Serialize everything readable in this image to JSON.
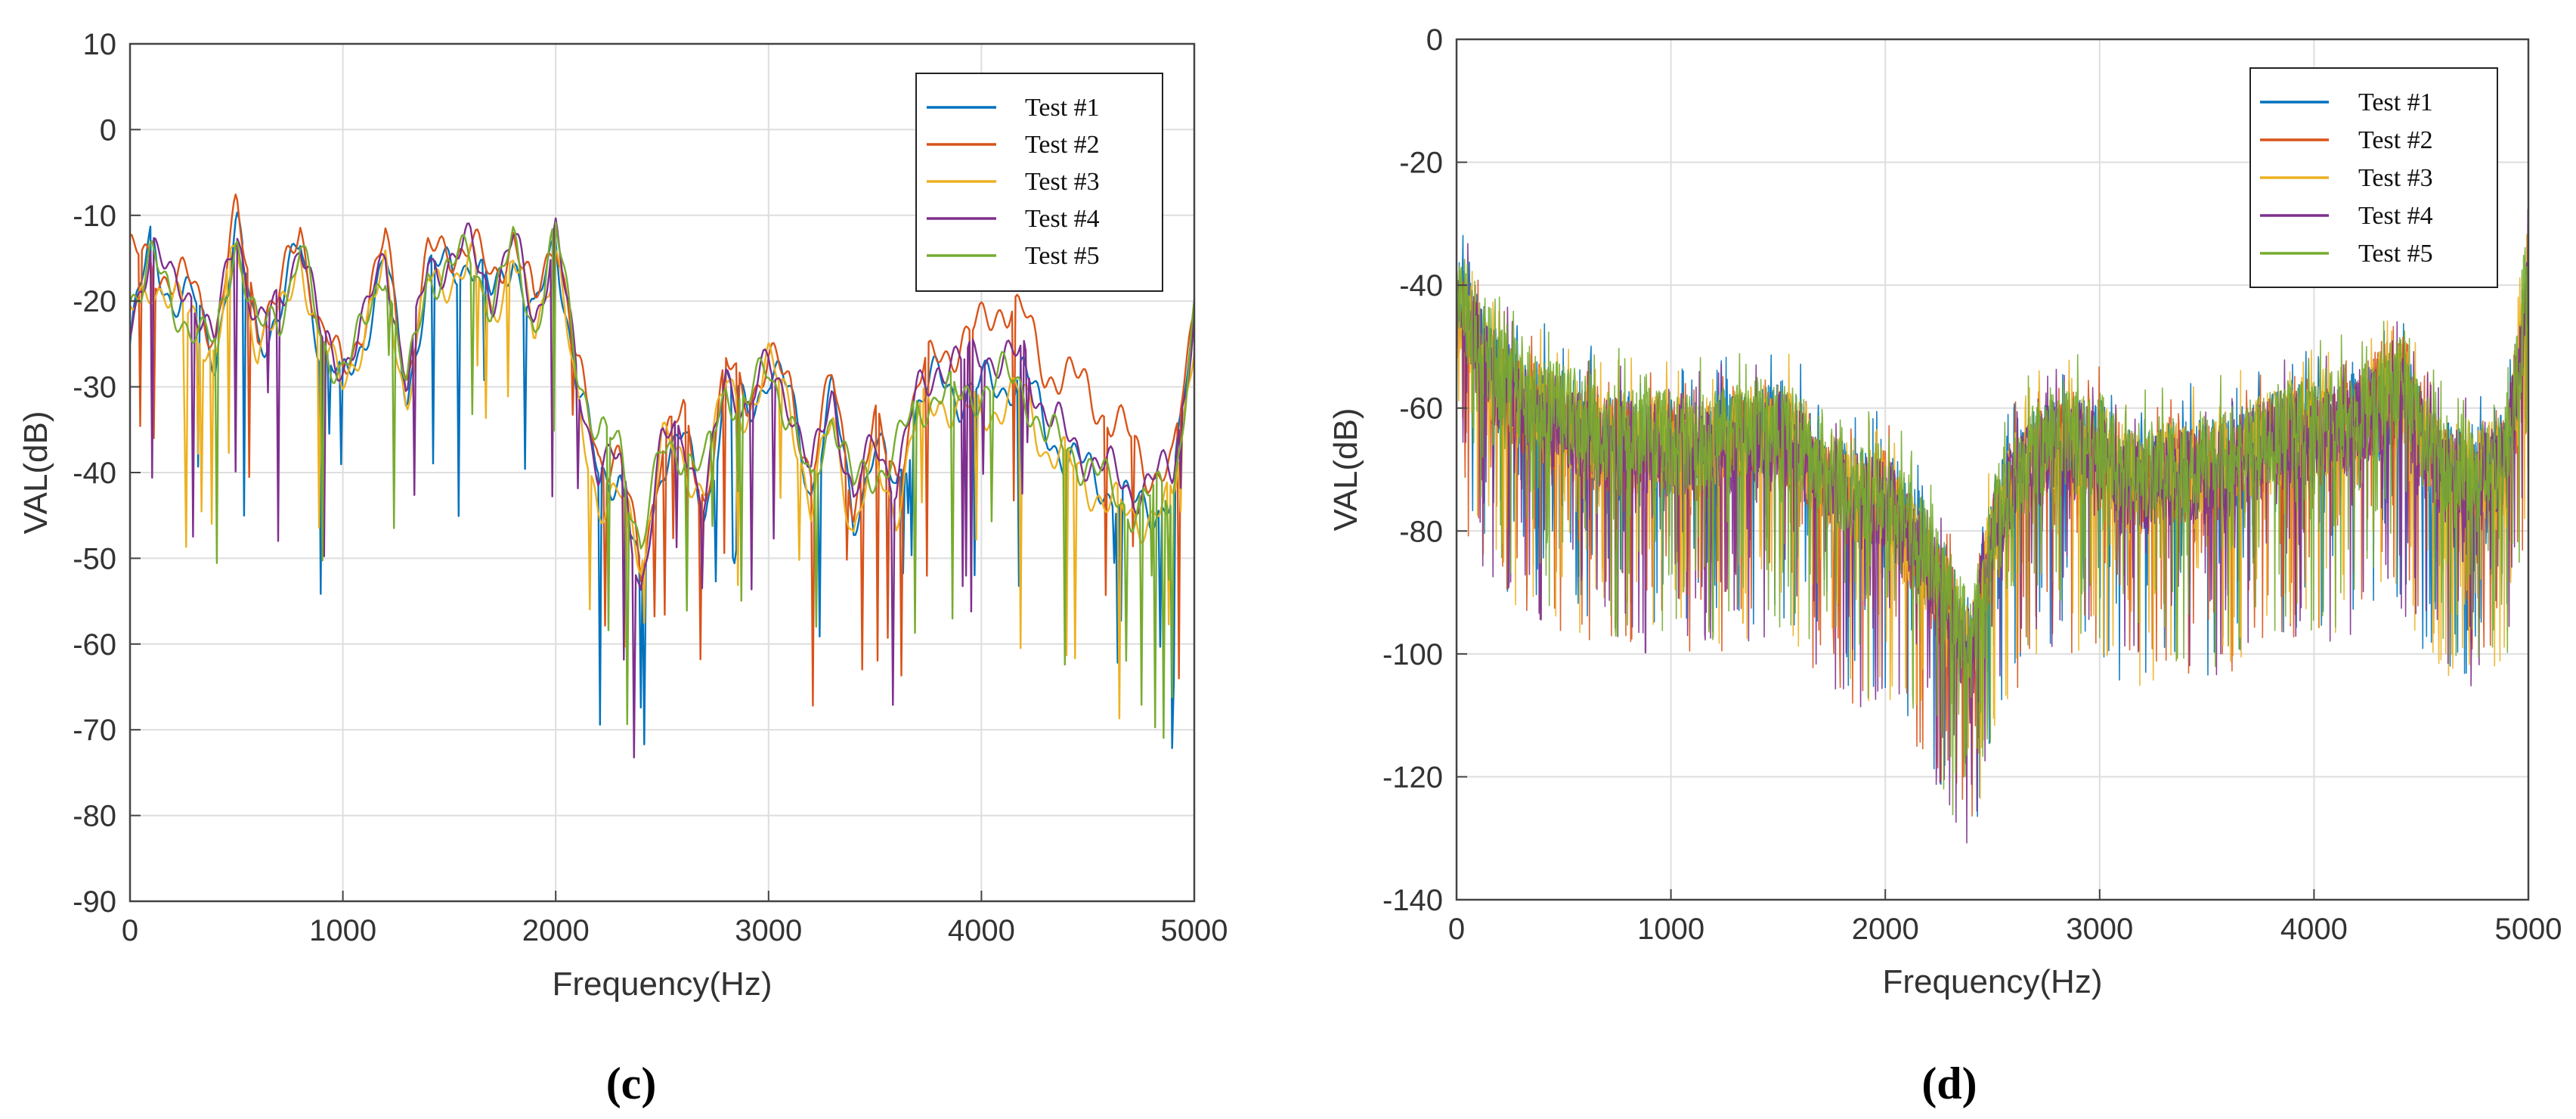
{
  "chart_data": [
    {
      "type": "line",
      "caption": "(c)",
      "xlabel": "Frequency(Hz)",
      "ylabel": "VAL(dB)",
      "xlim": [
        0,
        5000
      ],
      "ylim": [
        -90,
        10
      ],
      "xticks": [
        0,
        1000,
        2000,
        3000,
        4000,
        5000
      ],
      "yticks": [
        10,
        0,
        -10,
        -20,
        -30,
        -40,
        -50,
        -60,
        -70,
        -80,
        -90
      ],
      "grid": true,
      "legend_position": "top-right",
      "x": [
        0,
        100,
        200,
        300,
        400,
        500,
        600,
        700,
        800,
        900,
        1000,
        1100,
        1200,
        1300,
        1400,
        1500,
        1600,
        1700,
        1800,
        1900,
        2000,
        2100,
        2200,
        2300,
        2400,
        2500,
        2600,
        2700,
        2800,
        2900,
        3000,
        3100,
        3200,
        3300,
        3400,
        3500,
        3600,
        3700,
        3800,
        3900,
        4000,
        4100,
        4200,
        4300,
        4400,
        4500,
        4600,
        4700,
        4800,
        4900,
        5000
      ],
      "series": [
        {
          "name": "Test #1",
          "color": "#0072BD",
          "values": [
            -25,
            -13,
            -20,
            -20,
            -26,
            -12,
            -24,
            -22,
            -13,
            -26,
            -30,
            -24,
            -15,
            -31,
            -17,
            -16,
            -15,
            -20,
            -14,
            -23,
            -12,
            -30,
            -40,
            -40,
            -54,
            -38,
            -36,
            -45,
            -30,
            -33,
            -28,
            -31,
            -42,
            -31,
            -45,
            -37,
            -42,
            -32,
            -29,
            -31,
            -30,
            -30,
            -28,
            -35,
            -38,
            -40,
            -42,
            -44,
            -44,
            -43,
            -22
          ]
        },
        {
          "name": "Test #2",
          "color": "#D95319",
          "values": [
            -15,
            -15,
            -18,
            -18,
            -24,
            -10,
            -22,
            -20,
            -11,
            -24,
            -28,
            -22,
            -13,
            -29,
            -15,
            -14,
            -13,
            -18,
            -12,
            -21,
            -11,
            -28,
            -38,
            -38,
            -52,
            -36,
            -34,
            -43,
            -28,
            -31,
            -27,
            -30,
            -40,
            -29,
            -43,
            -35,
            -40,
            -30,
            -26,
            -25,
            -23,
            -20,
            -22,
            -28,
            -29,
            -30,
            -34,
            -36,
            -40,
            -40,
            -20
          ]
        },
        {
          "name": "Test #3",
          "color": "#EDB120",
          "values": [
            -22,
            -17,
            -21,
            -21,
            -27,
            -13,
            -25,
            -23,
            -14,
            -27,
            -28,
            -25,
            -16,
            -32,
            -18,
            -17,
            -16,
            -21,
            -15,
            -24,
            -13,
            -33,
            -43,
            -43,
            -50,
            -36,
            -40,
            -41,
            -30,
            -33,
            -28,
            -31,
            -45,
            -33,
            -47,
            -39,
            -44,
            -34,
            -31,
            -33,
            -33,
            -32,
            -31,
            -37,
            -39,
            -41,
            -44,
            -45,
            -45,
            -44,
            -23
          ]
        },
        {
          "name": "Test #4",
          "color": "#7E2F8E",
          "values": [
            -24,
            -12,
            -19,
            -19,
            -25,
            -11,
            -23,
            -21,
            -12,
            -25,
            -27,
            -23,
            -14,
            -30,
            -16,
            -15,
            -14,
            -19,
            -13,
            -22,
            -12,
            -29,
            -39,
            -39,
            -53,
            -37,
            -35,
            -44,
            -29,
            -32,
            -28,
            -31,
            -41,
            -30,
            -44,
            -36,
            -41,
            -31,
            -27,
            -28,
            -25,
            -28,
            -26,
            -33,
            -36,
            -38,
            -40,
            -42,
            -41,
            -40,
            -21
          ]
        },
        {
          "name": "Test #5",
          "color": "#77AC30",
          "values": [
            -20,
            -14,
            -22,
            -22,
            -26,
            -12,
            -24,
            -22,
            -13,
            -26,
            -27,
            -24,
            -15,
            -31,
            -17,
            -16,
            -15,
            -20,
            -14,
            -23,
            -12,
            -27,
            -36,
            -37,
            -48,
            -38,
            -37,
            -40,
            -30,
            -32,
            -28,
            -33,
            -43,
            -32,
            -42,
            -40,
            -37,
            -33,
            -30,
            -32,
            -30,
            -29,
            -30,
            -36,
            -37,
            -39,
            -42,
            -44,
            -43,
            -42,
            -22
          ]
        }
      ],
      "legend": [
        "Test #1",
        "Test #2",
        "Test #3",
        "Test #4",
        "Test #5"
      ]
    },
    {
      "type": "line",
      "caption": "(d)",
      "xlabel": "Frequency(Hz)",
      "ylabel": "VAL(dB)",
      "xlim": [
        0,
        5000
      ],
      "ylim": [
        -140,
        0
      ],
      "xticks": [
        0,
        1000,
        2000,
        3000,
        4000,
        5000
      ],
      "yticks": [
        0,
        -20,
        -40,
        -60,
        -80,
        -100,
        -120,
        -140
      ],
      "grid": true,
      "legend_position": "top-right",
      "x": [
        0,
        100,
        200,
        300,
        400,
        500,
        600,
        700,
        800,
        900,
        1000,
        1100,
        1200,
        1300,
        1400,
        1500,
        1600,
        1700,
        1800,
        1900,
        2000,
        2100,
        2200,
        2300,
        2400,
        2500,
        2600,
        2700,
        2800,
        2900,
        3000,
        3100,
        3200,
        3300,
        3400,
        3500,
        3600,
        3700,
        3800,
        3900,
        4000,
        4100,
        4200,
        4300,
        4400,
        4500,
        4600,
        4700,
        4800,
        4900,
        5000
      ],
      "series": [
        {
          "name": "Test #1",
          "color": "#0072BD",
          "values": [
            -42,
            -50,
            -55,
            -58,
            -60,
            -62,
            -63,
            -65,
            -65,
            -66,
            -66,
            -67,
            -66,
            -65,
            -64,
            -64,
            -66,
            -70,
            -73,
            -75,
            -74,
            -80,
            -85,
            -92,
            -100,
            -80,
            -72,
            -68,
            -66,
            -66,
            -66,
            -72,
            -72,
            -70,
            -70,
            -70,
            -69,
            -67,
            -65,
            -64,
            -64,
            -63,
            -62,
            -60,
            -58,
            -65,
            -70,
            -70,
            -71,
            -68,
            -40
          ]
        },
        {
          "name": "Test #2",
          "color": "#D95319",
          "values": [
            -44,
            -52,
            -57,
            -60,
            -62,
            -64,
            -65,
            -66,
            -66,
            -67,
            -67,
            -68,
            -67,
            -66,
            -65,
            -65,
            -67,
            -71,
            -74,
            -76,
            -75,
            -81,
            -87,
            -94,
            -101,
            -82,
            -73,
            -69,
            -67,
            -67,
            -67,
            -73,
            -73,
            -71,
            -71,
            -71,
            -70,
            -68,
            -66,
            -65,
            -65,
            -64,
            -62,
            -58,
            -53,
            -64,
            -71,
            -71,
            -72,
            -69,
            -42
          ]
        },
        {
          "name": "Test #3",
          "color": "#EDB120",
          "values": [
            -41,
            -51,
            -56,
            -59,
            -61,
            -63,
            -64,
            -65,
            -65,
            -66,
            -66,
            -67,
            -66,
            -65,
            -64,
            -64,
            -66,
            -70,
            -73,
            -75,
            -74,
            -80,
            -86,
            -93,
            -100,
            -81,
            -72,
            -68,
            -66,
            -66,
            -66,
            -72,
            -72,
            -70,
            -70,
            -70,
            -69,
            -67,
            -65,
            -64,
            -64,
            -63,
            -62,
            -60,
            -57,
            -65,
            -70,
            -70,
            -71,
            -68,
            -41
          ]
        },
        {
          "name": "Test #4",
          "color": "#7E2F8E",
          "values": [
            -43,
            -51,
            -56,
            -59,
            -61,
            -63,
            -64,
            -66,
            -66,
            -67,
            -67,
            -68,
            -67,
            -66,
            -65,
            -65,
            -67,
            -71,
            -74,
            -76,
            -75,
            -81,
            -86,
            -93,
            -101,
            -81,
            -73,
            -69,
            -67,
            -67,
            -67,
            -73,
            -73,
            -71,
            -71,
            -71,
            -70,
            -68,
            -66,
            -65,
            -65,
            -64,
            -63,
            -61,
            -58,
            -66,
            -71,
            -71,
            -72,
            -69,
            -38
          ]
        },
        {
          "name": "Test #5",
          "color": "#77AC30",
          "values": [
            -40,
            -48,
            -54,
            -57,
            -59,
            -61,
            -62,
            -64,
            -64,
            -65,
            -65,
            -66,
            -65,
            -64,
            -63,
            -63,
            -65,
            -69,
            -72,
            -74,
            -73,
            -79,
            -84,
            -91,
            -99,
            -79,
            -71,
            -67,
            -65,
            -65,
            -65,
            -71,
            -71,
            -69,
            -69,
            -69,
            -68,
            -66,
            -64,
            -63,
            -63,
            -62,
            -61,
            -59,
            -56,
            -64,
            -69,
            -69,
            -70,
            -67,
            -42
          ]
        }
      ],
      "legend": [
        "Test #1",
        "Test #2",
        "Test #3",
        "Test #4",
        "Test #5"
      ]
    }
  ]
}
